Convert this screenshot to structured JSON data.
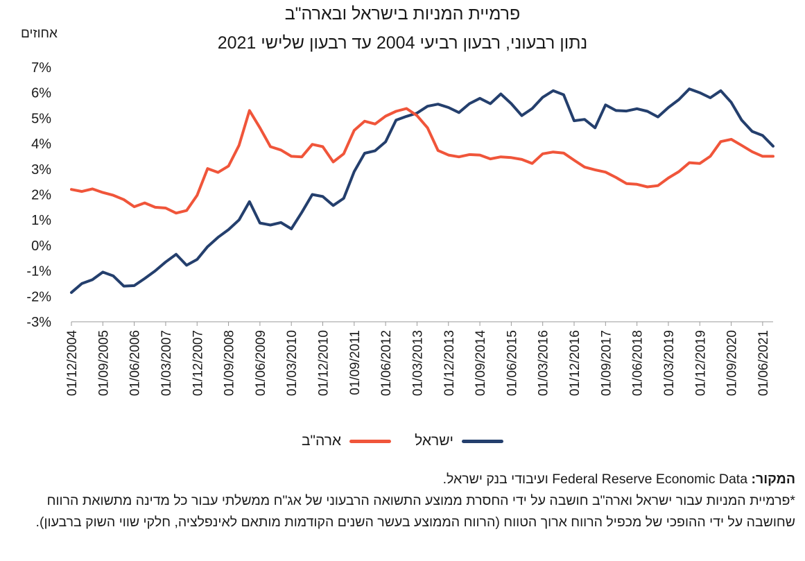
{
  "chart_data": {
    "type": "line",
    "title": "פרמיית המניות בישראל ובארה\"ב",
    "subtitle": "נתון רבעוני, רבעון רביעי 2004 עד רבעון שלישי 2021",
    "unit_label": "אחוזים",
    "y_ticks": [
      "7%",
      "6%",
      "5%",
      "4%",
      "3%",
      "2%",
      "1%",
      "0%",
      "-1%",
      "-2%",
      "-3%"
    ],
    "ylim": [
      -3,
      7
    ],
    "x_tick_labels": [
      "01/12/2004",
      "01/09/2005",
      "01/06/2006",
      "01/03/2007",
      "01/12/2007",
      "01/09/2008",
      "01/06/2009",
      "01/03/2010",
      "01/12/2010",
      "01/09/2011",
      "01/06/2012",
      "01/03/2013",
      "01/12/2013",
      "01/09/2014",
      "01/06/2015",
      "01/03/2016",
      "01/12/2016",
      "01/09/2017",
      "01/06/2018",
      "01/03/2019",
      "01/12/2019",
      "01/09/2020",
      "01/06/2021"
    ],
    "x": [
      "2004Q4",
      "2005Q1",
      "2005Q2",
      "2005Q3",
      "2005Q4",
      "2006Q1",
      "2006Q2",
      "2006Q3",
      "2006Q4",
      "2007Q1",
      "2007Q2",
      "2007Q3",
      "2007Q4",
      "2008Q1",
      "2008Q2",
      "2008Q3",
      "2008Q4",
      "2009Q1",
      "2009Q2",
      "2009Q3",
      "2009Q4",
      "2010Q1",
      "2010Q2",
      "2010Q3",
      "2010Q4",
      "2011Q1",
      "2011Q2",
      "2011Q3",
      "2011Q4",
      "2012Q1",
      "2012Q2",
      "2012Q3",
      "2012Q4",
      "2013Q1",
      "2013Q2",
      "2013Q3",
      "2013Q4",
      "2014Q1",
      "2014Q2",
      "2014Q3",
      "2014Q4",
      "2015Q1",
      "2015Q2",
      "2015Q3",
      "2015Q4",
      "2016Q1",
      "2016Q2",
      "2016Q3",
      "2016Q4",
      "2017Q1",
      "2017Q2",
      "2017Q3",
      "2017Q4",
      "2018Q1",
      "2018Q2",
      "2018Q3",
      "2018Q4",
      "2019Q1",
      "2019Q2",
      "2019Q3",
      "2019Q4",
      "2020Q1",
      "2020Q2",
      "2020Q3",
      "2020Q4",
      "2021Q1",
      "2021Q2",
      "2021Q3"
    ],
    "series": [
      {
        "name": "ישראל",
        "color": "#243f6d",
        "values": [
          -1.85,
          -1.5,
          -1.35,
          -1.05,
          -1.2,
          -1.6,
          -1.58,
          -1.3,
          -1.0,
          -0.65,
          -0.35,
          -0.78,
          -0.55,
          -0.05,
          0.32,
          0.62,
          1.0,
          1.72,
          0.88,
          0.8,
          0.9,
          0.65,
          1.3,
          2.0,
          1.92,
          1.57,
          1.85,
          2.9,
          3.62,
          3.72,
          4.07,
          4.92,
          5.07,
          5.2,
          5.47,
          5.55,
          5.42,
          5.22,
          5.57,
          5.78,
          5.57,
          5.95,
          5.57,
          5.1,
          5.38,
          5.82,
          6.08,
          5.92,
          4.9,
          4.95,
          4.62,
          5.52,
          5.3,
          5.28,
          5.37,
          5.27,
          5.05,
          5.42,
          5.73,
          6.15,
          6.0,
          5.8,
          6.08,
          5.62,
          4.92,
          4.48,
          4.32,
          3.9
        ]
      },
      {
        "name": "ארה\"ב",
        "color": "#f0553a",
        "values": [
          2.2,
          2.12,
          2.22,
          2.08,
          1.97,
          1.8,
          1.52,
          1.67,
          1.5,
          1.47,
          1.27,
          1.37,
          1.97,
          3.02,
          2.87,
          3.12,
          3.93,
          5.3,
          4.62,
          3.88,
          3.75,
          3.5,
          3.48,
          3.97,
          3.88,
          3.28,
          3.6,
          4.52,
          4.88,
          4.77,
          5.08,
          5.27,
          5.38,
          5.1,
          4.62,
          3.73,
          3.55,
          3.48,
          3.57,
          3.55,
          3.4,
          3.48,
          3.45,
          3.38,
          3.22,
          3.6,
          3.67,
          3.63,
          3.35,
          3.08,
          2.97,
          2.88,
          2.67,
          2.43,
          2.4,
          2.3,
          2.35,
          2.65,
          2.9,
          3.25,
          3.22,
          3.5,
          4.08,
          4.17,
          3.93,
          3.68,
          3.5,
          3.5
        ]
      }
    ],
    "grid": false
  },
  "legend": {
    "israel": "ישראל",
    "usa": "ארה\"ב"
  },
  "notes": {
    "source_label": "המקור:",
    "source_text": "Federal Reserve Economic Data",
    "source_suffix": " ועיבודי בנק ישראל.",
    "footnote": "*פרמיית המניות עבור ישראל וארה\"ב חושבה על ידי החסרת ממוצע התשואה הרבעוני של אג\"ח ממשלתי עבור כל מדינה מתשואת הרווח שחושבה על ידי ההופכי של מכפיל הרווח ארוך הטווח (הרווח הממוצע בעשר השנים הקודמות מותאם לאינפלציה, חלקי שווי השוק ברבעון)."
  }
}
